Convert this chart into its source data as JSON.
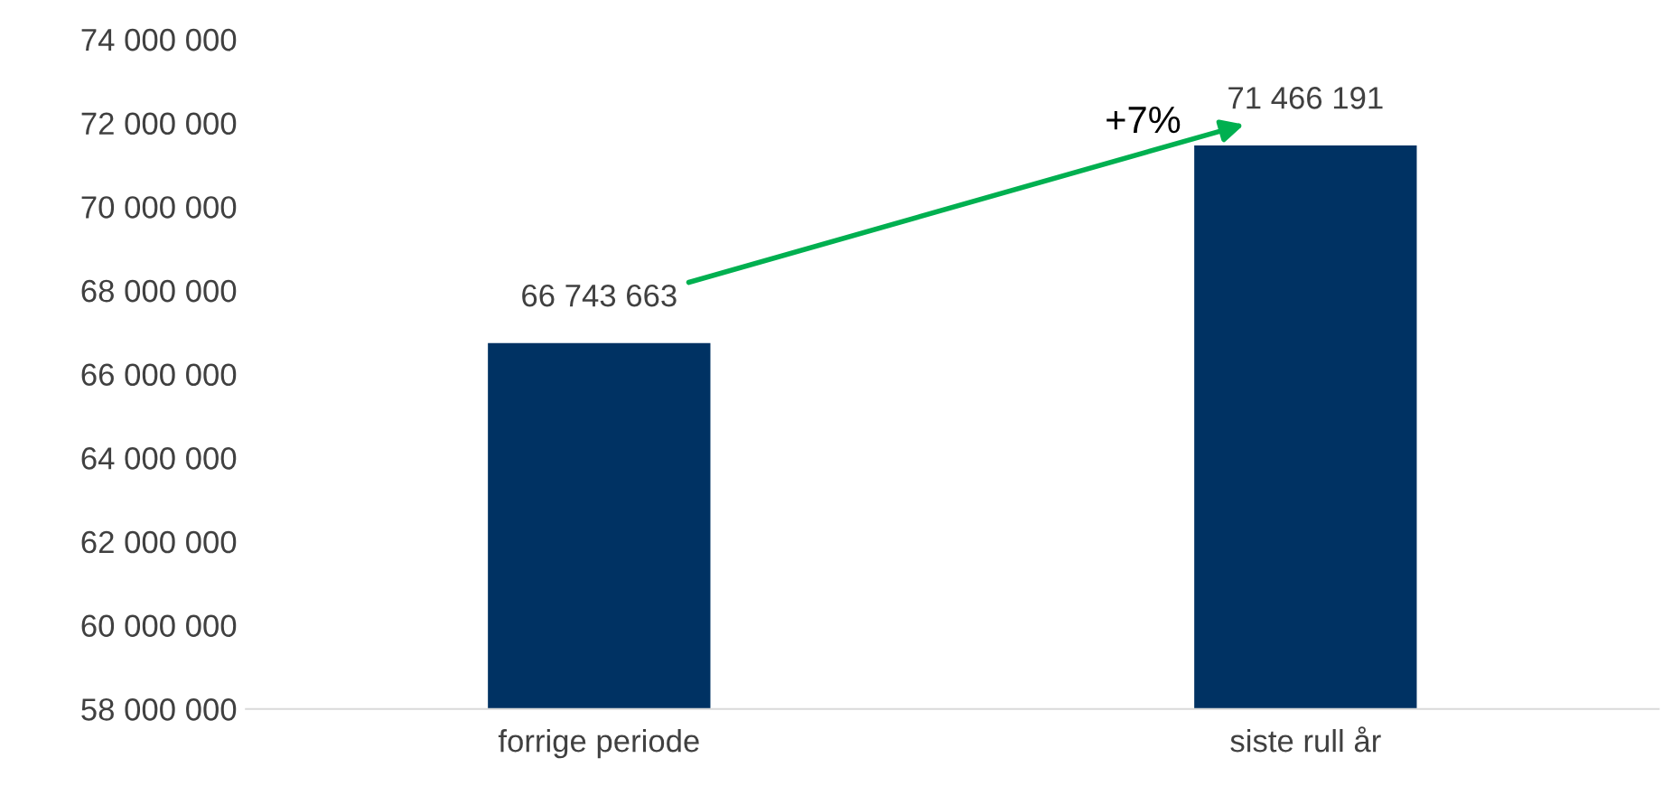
{
  "chart_data": {
    "type": "bar",
    "categories": [
      "forrige periode",
      "siste rull år"
    ],
    "values": [
      66743663,
      71466191
    ],
    "value_labels": [
      "66 743 663",
      "71 466 191"
    ],
    "color": "#003263",
    "ylim": [
      58000000,
      74000000
    ],
    "yticks": [
      {
        "value": 58000000,
        "label": "58 000 000"
      },
      {
        "value": 60000000,
        "label": "60 000 000"
      },
      {
        "value": 62000000,
        "label": "62 000 000"
      },
      {
        "value": 64000000,
        "label": "64 000 000"
      },
      {
        "value": 66000000,
        "label": "66 000 000"
      },
      {
        "value": 68000000,
        "label": "68 000 000"
      },
      {
        "value": 70000000,
        "label": "70 000 000"
      },
      {
        "value": 72000000,
        "label": "72 000 000"
      },
      {
        "value": 74000000,
        "label": "74 000 000"
      }
    ],
    "grid": false,
    "annotations": [
      "+7%"
    ]
  }
}
